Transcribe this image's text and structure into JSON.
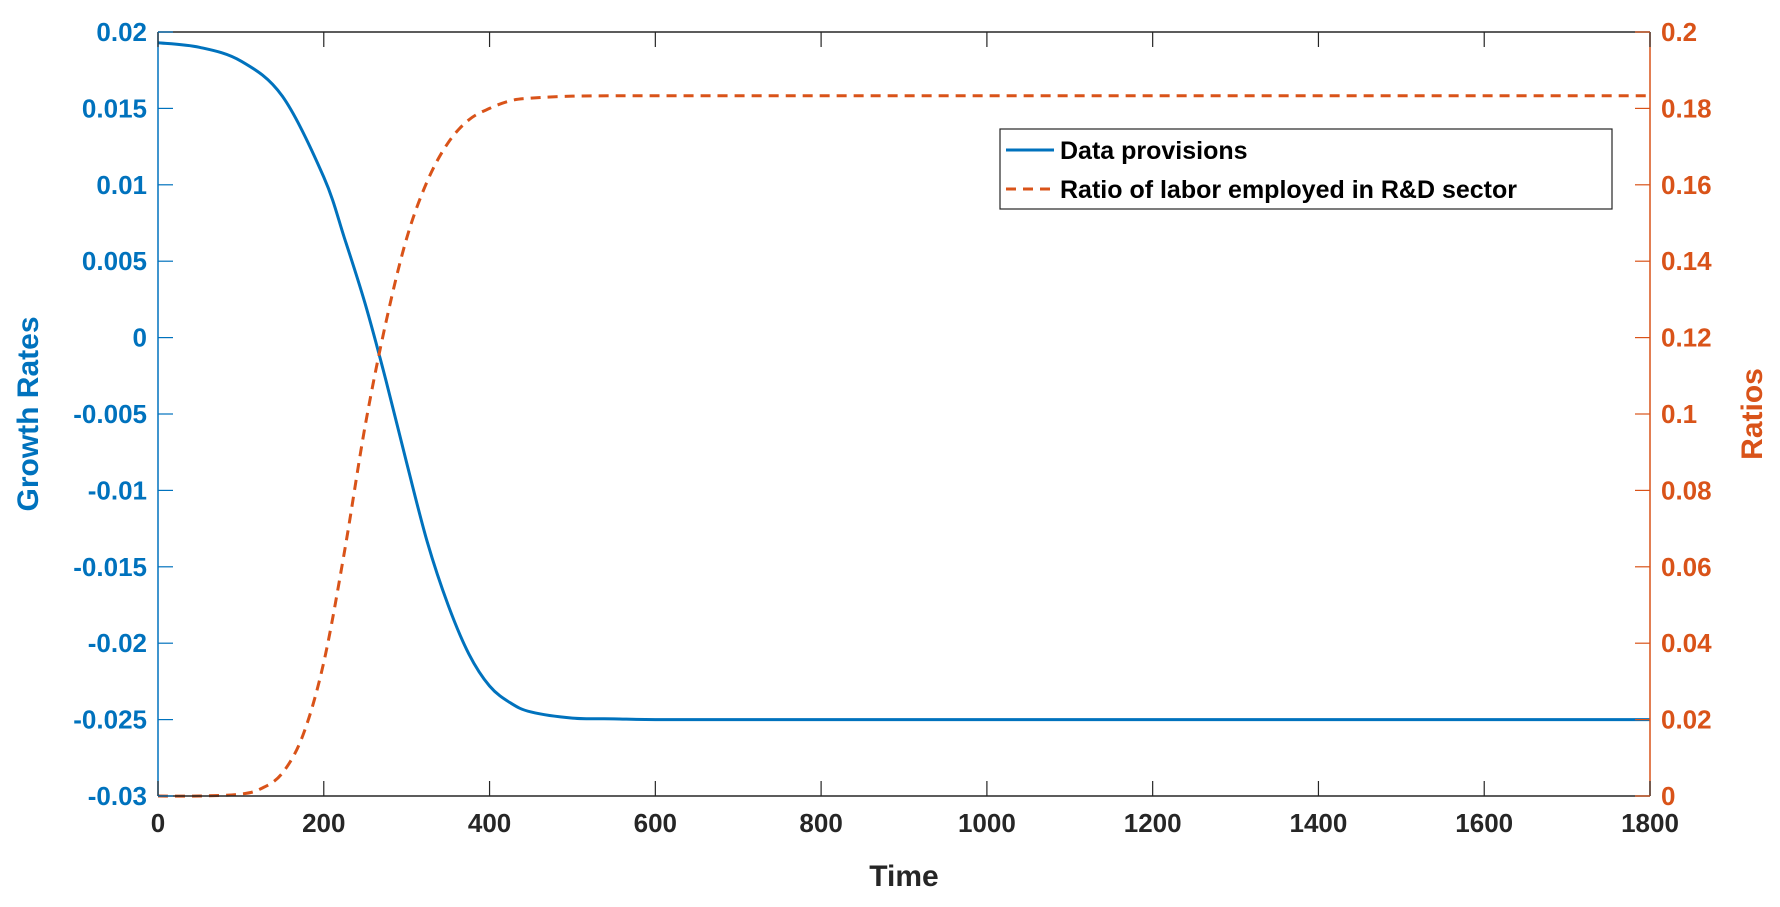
{
  "chart_data": {
    "type": "line",
    "title": "",
    "xlabel": "Time",
    "ylabel_left": "Growth Rates",
    "ylabel_right": "Ratios",
    "xlim": [
      0,
      1800
    ],
    "ylim_left": [
      -0.03,
      0.02
    ],
    "ylim_right": [
      0,
      0.2
    ],
    "x_ticks": [
      "0",
      "200",
      "400",
      "600",
      "800",
      "1000",
      "1200",
      "1400",
      "1600",
      "1800"
    ],
    "y_left_ticks": [
      "0.02",
      "0.015",
      "0.01",
      "0.005",
      "0",
      "-0.005",
      "-0.01",
      "-0.015",
      "-0.02",
      "-0.025",
      "-0.03"
    ],
    "y_right_ticks": [
      "0.2",
      "0.18",
      "0.16",
      "0.14",
      "0.12",
      "0.1",
      "0.08",
      "0.06",
      "0.04",
      "0.02",
      "0"
    ],
    "grid": false,
    "legend_position": "top-right",
    "series": [
      {
        "name": "Data provisions",
        "axis": "left",
        "style": "solid",
        "color": "#0072BD",
        "x": [
          0,
          50,
          100,
          150,
          200,
          225,
          250,
          275,
          300,
          325,
          350,
          375,
          400,
          425,
          450,
          500,
          550,
          600,
          700,
          800,
          1000,
          1200,
          1400,
          1600,
          1800
        ],
        "y": [
          0.0193,
          0.019,
          0.0181,
          0.0158,
          0.0105,
          0.0065,
          0.0022,
          -0.0028,
          -0.0082,
          -0.0134,
          -0.0175,
          -0.0207,
          -0.0228,
          -0.0239,
          -0.0245,
          -0.0249,
          -0.02495,
          -0.025,
          -0.025,
          -0.025,
          -0.025,
          -0.025,
          -0.025,
          -0.025,
          -0.025
        ]
      },
      {
        "name": "Ratio of labor employed in R&D sector",
        "axis": "right",
        "style": "dashed",
        "color": "#D95319",
        "x": [
          0,
          50,
          100,
          125,
          150,
          175,
          200,
          225,
          250,
          275,
          300,
          325,
          350,
          375,
          400,
          425,
          450,
          500,
          550,
          600,
          800,
          1000,
          1200,
          1400,
          1600,
          1800
        ],
        "y": [
          0,
          0,
          0.0005,
          0.002,
          0.006,
          0.016,
          0.035,
          0.064,
          0.097,
          0.124,
          0.146,
          0.161,
          0.171,
          0.177,
          0.18,
          0.182,
          0.1827,
          0.1832,
          0.1833,
          0.1833,
          0.1833,
          0.1833,
          0.1833,
          0.1833,
          0.1833,
          0.1833
        ]
      }
    ]
  }
}
